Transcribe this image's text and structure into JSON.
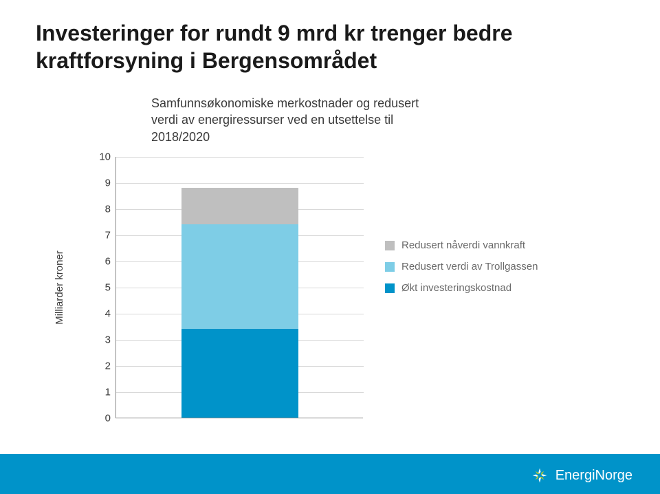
{
  "title_line1": "Investeringer for rundt 9 mrd kr trenger bedre",
  "title_line2": "kraftforsyning i Bergensområdet",
  "subtitle_line1": "Samfunnsøkonomiske merkostnader og redusert",
  "subtitle_line2": "verdi av energiressurser ved en utsettelse til",
  "subtitle_line3": "2018/2020",
  "ylabel": "Milliarder kroner",
  "chart": {
    "type": "stacked-bar",
    "ylim": [
      0,
      10
    ],
    "ytick_step": 1,
    "yticks": [
      0,
      1,
      2,
      3,
      4,
      5,
      6,
      7,
      8,
      9,
      10
    ],
    "grid_color": "#d9d9d9",
    "axis_color": "#888888",
    "background_color": "#ffffff",
    "bar_width_ratio": 0.47,
    "bar_center_ratio": 0.5,
    "segments": [
      {
        "key": "okt_invest",
        "value": 3.4,
        "color": "#0093c9"
      },
      {
        "key": "troll",
        "value": 4.0,
        "color": "#7ecde6"
      },
      {
        "key": "vannkraft",
        "value": 1.4,
        "color": "#bfbfbf"
      }
    ],
    "legend": [
      {
        "label": "Redusert nåverdi vannkraft",
        "color": "#bfbfbf"
      },
      {
        "label": "Redusert verdi av Trollgassen",
        "color": "#7ecde6"
      },
      {
        "label": "Økt investeringskostnad",
        "color": "#0093c9"
      }
    ]
  },
  "footer": {
    "bar_color": "#0093c9",
    "logo_text": "EnergiNorge"
  }
}
